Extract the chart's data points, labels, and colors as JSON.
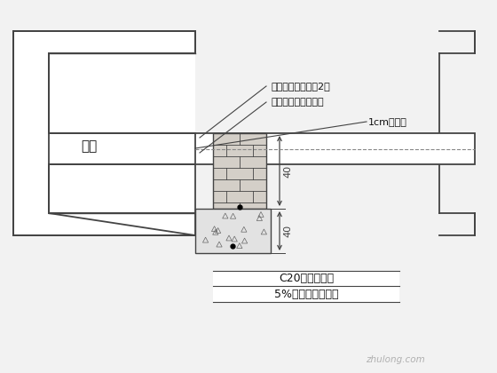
{
  "bg_color": "#f2f2f2",
  "line_color": "#444444",
  "text_color": "#111111",
  "ann_color": "#444444",
  "label_xuanhan": "筱洵",
  "label_annotation1": "雨水管裹握油毛筡2层",
  "label_annotation2": "缝隙用氥青胶泥填实",
  "label_annotation3": "1cm安装缝",
  "label_c20": "C20混凝土支墅",
  "label_5pct": "5%水泥稳定沙卵石",
  "dim_40_top": "40",
  "dim_40_bottom": "40",
  "watermark": "zhulong.com"
}
